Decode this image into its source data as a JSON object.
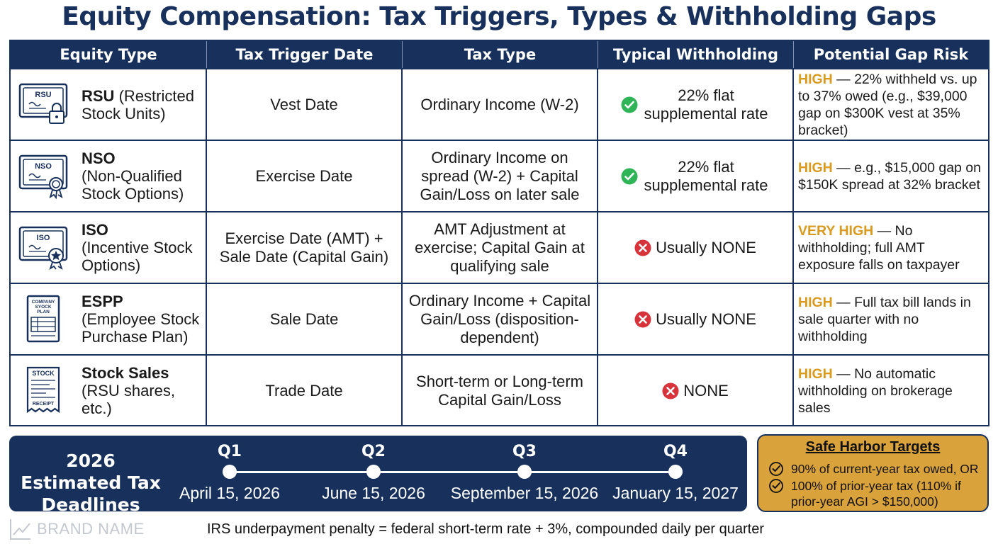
{
  "title": "Equity Compensation: Tax Triggers, Types & Withholding Gaps",
  "table": {
    "headers": [
      "Equity Type",
      "Tax Trigger Date",
      "Tax Type",
      "Typical Withholding",
      "Potential Gap Risk"
    ],
    "rows": [
      {
        "icon": "rsu-certificate-lock-icon",
        "icon_label": "RSU",
        "name": "RSU",
        "name_suffix": " (Restricted Stock Units)",
        "trigger": "Vest Date",
        "tax_type": "Ordinary Income (W-2)",
        "withholding_status": "check",
        "withholding": "22% flat supplemental rate",
        "gap_level": "HIGH",
        "gap_text": " — 22% withheld vs. up to 37% owed (e.g., $39,000 gap on $300K vest at 35% bracket)"
      },
      {
        "icon": "nso-certificate-seal-icon",
        "icon_label": "NSO",
        "name": "NSO",
        "name_suffix": "(Non-Qualified Stock Options)",
        "trigger": "Exercise Date",
        "tax_type": "Ordinary Income on spread (W-2) + Capital Gain/Loss on later sale",
        "withholding_status": "check",
        "withholding": "22% flat supplemental rate",
        "gap_level": "HIGH",
        "gap_text": " — e.g., $15,000 gap on $150K spread at 32% bracket"
      },
      {
        "icon": "iso-certificate-star-icon",
        "icon_label": "ISO",
        "name": "ISO",
        "name_suffix": "(Incentive Stock Options)",
        "trigger": "Exercise Date (AMT) + Sale Date (Capital Gain)",
        "tax_type": "AMT Adjustment at exercise; Capital Gain at qualifying sale",
        "withholding_status": "x",
        "withholding": "Usually NONE",
        "gap_level": "VERY HIGH",
        "gap_text": " — No withholding; full AMT exposure falls on taxpayer"
      },
      {
        "icon": "espp-plan-document-icon",
        "icon_label": "COMPANY SYOCK PLAN",
        "name": "ESPP",
        "name_suffix": "(Employee Stock Purchase Plan)",
        "trigger": "Sale Date",
        "tax_type": "Ordinary Income + Capital Gain/Loss (disposition-dependent)",
        "withholding_status": "x",
        "withholding": "Usually NONE",
        "gap_level": "HIGH",
        "gap_text": " — Full tax bill lands in sale quarter with no withholding"
      },
      {
        "icon": "stock-receipt-icon",
        "icon_label": "STOCK",
        "icon_label_2": "RECEIPT",
        "name": "Stock Sales",
        "name_suffix": "(RSU shares, etc.)",
        "trigger": "Trade Date",
        "tax_type": "Short-term or Long-term Capital Gain/Loss",
        "withholding_status": "x",
        "withholding": "NONE",
        "gap_level": "HIGH",
        "gap_text": " — No automatic withholding on brokerage sales"
      }
    ]
  },
  "deadlines": {
    "title": "2026 Estimated Tax Deadlines",
    "quarters": [
      {
        "q": "Q1",
        "date": "April 15, 2026"
      },
      {
        "q": "Q2",
        "date": "June 15, 2026"
      },
      {
        "q": "Q3",
        "date": "September 15, 2026"
      },
      {
        "q": "Q4",
        "date": "January 15, 2027"
      }
    ]
  },
  "safe_harbor": {
    "title": "Safe Harbor Targets",
    "items": [
      "90% of current-year tax owed, OR",
      "100% of prior-year tax (110% if prior-year AGI > $150,000)"
    ]
  },
  "brand": "BRAND NAME",
  "footnote": "IRS underpayment penalty = federal short-term rate + 3%, compounded daily per quarter",
  "colors": {
    "navy": "#17305c",
    "gold": "#d99a1e",
    "safe_bg": "#d9a23a",
    "check_green": "#2fb457",
    "x_red": "#d8333a"
  }
}
